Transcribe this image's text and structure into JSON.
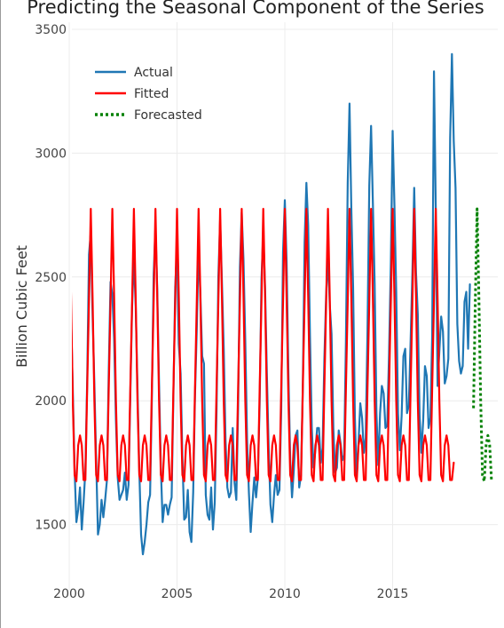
{
  "chart_data": {
    "type": "line",
    "title": "Predicting the Seasonal Component of the Series",
    "xlabel": "",
    "ylabel": "Billion Cubic Feet",
    "xlim": [
      2000,
      2019.7
    ],
    "ylim": [
      1360,
      3500
    ],
    "x_ticks": [
      2000,
      2005,
      2010,
      2015
    ],
    "y_ticks": [
      1500,
      2000,
      2500,
      3000,
      3500
    ],
    "grid": true,
    "legend_position": "top-left",
    "colors": {
      "actual": "#1f77b4",
      "fitted": "#ff0000",
      "forecasted": "#008000"
    },
    "series": [
      {
        "name": "Actual",
        "style": "solid",
        "color": "#1f77b4",
        "monthly_start": "2000-01",
        "frequency": "monthly",
        "values": [
          2760,
          2350,
          2040,
          1720,
          1510,
          1560,
          1650,
          1480,
          1590,
          1720,
          2080,
          2590,
          2680,
          2350,
          2070,
          1760,
          1460,
          1500,
          1600,
          1530,
          1600,
          1680,
          2120,
          2480,
          2430,
          2250,
          1920,
          1690,
          1600,
          1620,
          1640,
          1710,
          1600,
          1660,
          2020,
          2380,
          2580,
          2380,
          2050,
          1720,
          1460,
          1380,
          1430,
          1500,
          1590,
          1620,
          2010,
          2510,
          2700,
          2450,
          2070,
          1730,
          1510,
          1580,
          1580,
          1540,
          1580,
          1610,
          2030,
          2460,
          2620,
          2230,
          2110,
          1770,
          1520,
          1530,
          1640,
          1470,
          1430,
          1630,
          2020,
          2290,
          2620,
          2430,
          2180,
          2150,
          1620,
          1540,
          1520,
          1650,
          1480,
          1590,
          1960,
          2500,
          2730,
          2480,
          2210,
          1840,
          1650,
          1610,
          1630,
          1890,
          1670,
          1600,
          1970,
          2540,
          2760,
          2570,
          2240,
          1840,
          1630,
          1470,
          1590,
          1690,
          1610,
          1690,
          1990,
          2490,
          2680,
          2460,
          2110,
          1810,
          1580,
          1510,
          1620,
          1700,
          1620,
          1640,
          1960,
          2600,
          2810,
          2560,
          2110,
          1760,
          1610,
          1720,
          1860,
          1880,
          1650,
          1700,
          2050,
          2640,
          2880,
          2710,
          2260,
          1890,
          1730,
          1800,
          1890,
          1890,
          1750,
          1810,
          2170,
          2430,
          2580,
          2390,
          2270,
          1890,
          1710,
          1730,
          1880,
          1830,
          1760,
          1780,
          2240,
          2880,
          3200,
          2780,
          2460,
          1930,
          1690,
          1830,
          1990,
          1930,
          1790,
          1850,
          2280,
          2870,
          3110,
          2800,
          2470,
          1950,
          1740,
          1950,
          2060,
          2030,
          1890,
          1900,
          2190,
          2560,
          3090,
          2790,
          2440,
          1950,
          1800,
          1940,
          2180,
          2210,
          1950,
          1980,
          2240,
          2520,
          2860,
          2520,
          2350,
          1940,
          1790,
          1920,
          2140,
          2100,
          1890,
          1930,
          2260,
          3330,
          2780,
          2060,
          2200,
          2340,
          2280,
          2070,
          2100,
          2170,
          3060,
          3400,
          3050,
          2860,
          2310,
          2160,
          2110,
          2140,
          2400,
          2440,
          2210,
          2470
        ]
      },
      {
        "name": "Fitted",
        "style": "solid",
        "color": "#ff0000",
        "monthly_start": "2000-01",
        "frequency": "monthly",
        "values": [
          2775,
          2420,
          2000,
          1700,
          1675,
          1820,
          1860,
          1820,
          1680,
          1680,
          2050,
          2400,
          2775,
          2420,
          2000,
          1700,
          1675,
          1820,
          1860,
          1820,
          1680,
          1680,
          2050,
          2400,
          2775,
          2420,
          2000,
          1700,
          1675,
          1820,
          1860,
          1820,
          1680,
          1680,
          2050,
          2400,
          2775,
          2420,
          2000,
          1700,
          1675,
          1820,
          1860,
          1820,
          1680,
          1680,
          2050,
          2400,
          2775,
          2420,
          2000,
          1700,
          1675,
          1820,
          1860,
          1820,
          1680,
          1680,
          2050,
          2400,
          2775,
          2420,
          2000,
          1700,
          1675,
          1820,
          1860,
          1820,
          1680,
          1680,
          2050,
          2400,
          2775,
          2420,
          2000,
          1700,
          1675,
          1820,
          1860,
          1820,
          1680,
          1680,
          2050,
          2400,
          2775,
          2420,
          2000,
          1700,
          1675,
          1820,
          1860,
          1820,
          1680,
          1680,
          2050,
          2400,
          2775,
          2420,
          2000,
          1700,
          1675,
          1820,
          1860,
          1820,
          1680,
          1680,
          2050,
          2400,
          2775,
          2420,
          2000,
          1700,
          1675,
          1820,
          1860,
          1820,
          1680,
          1680,
          2050,
          2400,
          2775,
          2420,
          2000,
          1700,
          1675,
          1820,
          1860,
          1820,
          1680,
          1680,
          2050,
          2400,
          2775,
          2420,
          2000,
          1700,
          1675,
          1820,
          1860,
          1820,
          1680,
          1680,
          2050,
          2400,
          2775,
          2420,
          2000,
          1700,
          1675,
          1820,
          1860,
          1820,
          1680,
          1680,
          2050,
          2400,
          2775,
          2420,
          2000,
          1700,
          1675,
          1820,
          1860,
          1820,
          1680,
          1680,
          2050,
          2400,
          2775,
          2420,
          2000,
          1700,
          1675,
          1820,
          1860,
          1820,
          1680,
          1680,
          2050,
          2400,
          2775,
          2420,
          2000,
          1700,
          1675,
          1820,
          1860,
          1820,
          1680,
          1680,
          2050,
          2400,
          2775,
          2420,
          2000,
          1700,
          1675,
          1820,
          1860,
          1820,
          1680,
          1680,
          2050,
          2400,
          2775,
          2420,
          2000,
          1700,
          1675,
          1820,
          1860,
          1820,
          1680,
          1680,
          1750
        ]
      },
      {
        "name": "Forecasted",
        "style": "dotted",
        "color": "#008000",
        "monthly_start": "2018-10",
        "frequency": "monthly",
        "values": [
          1970,
          2400,
          2775,
          2420,
          2000,
          1700,
          1675,
          1820,
          1860,
          1820,
          1680,
          1680
        ]
      }
    ]
  }
}
